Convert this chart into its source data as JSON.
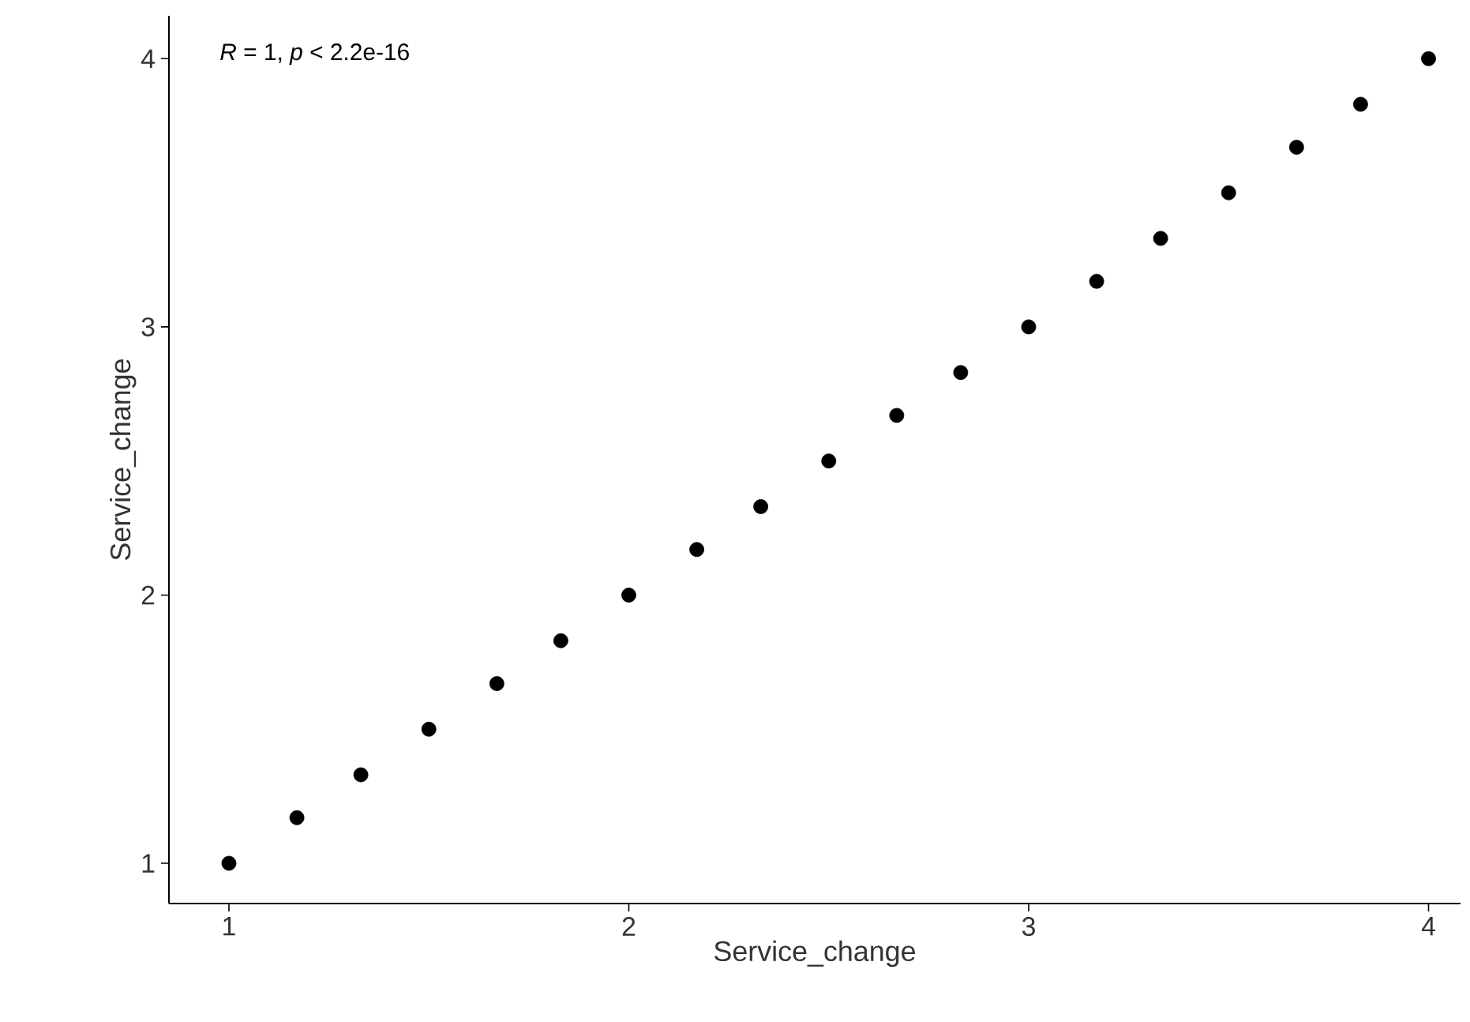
{
  "chart_data": {
    "type": "scatter",
    "xlabel": "Service_change",
    "ylabel": "Service_change",
    "annotations": [
      "*R* = 1, *p* < 2.2e-16"
    ],
    "color": "#000000",
    "marker": "circle",
    "x": [
      1,
      1.17,
      1.33,
      1.5,
      1.67,
      1.83,
      2,
      2.17,
      2.33,
      2.5,
      2.67,
      2.83,
      3,
      3.17,
      3.33,
      3.5,
      3.67,
      3.83,
      4
    ],
    "values": [
      1,
      1.17,
      1.33,
      1.5,
      1.67,
      1.83,
      2,
      2.17,
      2.33,
      2.5,
      2.67,
      2.83,
      3,
      3.17,
      3.33,
      3.5,
      3.67,
      3.83,
      4
    ],
    "xlim": [
      0.85,
      4.08
    ],
    "ylim": [
      0.85,
      4.16
    ],
    "xticks": [
      1,
      2,
      3,
      4
    ],
    "yticks": [
      1,
      2,
      3,
      4
    ]
  }
}
